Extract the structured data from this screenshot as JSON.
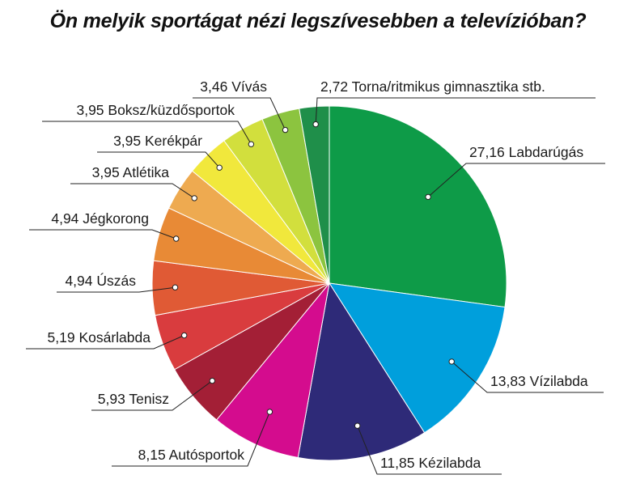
{
  "chart_data": {
    "type": "pie",
    "title": "Ön melyik sportágat nézi legszívesebben a televízióban?",
    "slices": [
      {
        "label": "Labdarúgás",
        "value": 27.16,
        "value_text": "27,16",
        "color": "#0e9b48"
      },
      {
        "label": "Vízilabda",
        "value": 13.83,
        "value_text": "13,83",
        "color": "#009fdc"
      },
      {
        "label": "Kézilabda",
        "value": 11.85,
        "value_text": "11,85",
        "color": "#2e2a78"
      },
      {
        "label": "Autósportok",
        "value": 8.15,
        "value_text": "8,15",
        "color": "#d40c8e"
      },
      {
        "label": "Tenisz",
        "value": 5.93,
        "value_text": "5,93",
        "color": "#a31f36"
      },
      {
        "label": "Kosárlabda",
        "value": 5.19,
        "value_text": "5,19",
        "color": "#d93c3e"
      },
      {
        "label": "Úszás",
        "value": 4.94,
        "value_text": "4,94",
        "color": "#e05a35"
      },
      {
        "label": "Jégkorong",
        "value": 4.94,
        "value_text": "4,94",
        "color": "#e88a36"
      },
      {
        "label": "Atlétika",
        "value": 3.95,
        "value_text": "3,95",
        "color": "#eeaa50"
      },
      {
        "label": "Kerékpár",
        "value": 3.95,
        "value_text": "3,95",
        "color": "#f1e83c"
      },
      {
        "label": "Boksz/küzdősportok",
        "value": 3.95,
        "value_text": "3,95",
        "color": "#d2df3d"
      },
      {
        "label": "Vívás",
        "value": 3.46,
        "value_text": "3,46",
        "color": "#8cc43f"
      },
      {
        "label": "Torna/ritmikus gimnasztika stb.",
        "value": 2.72,
        "value_text": "2,72",
        "color": "#1f8f4a"
      }
    ]
  }
}
